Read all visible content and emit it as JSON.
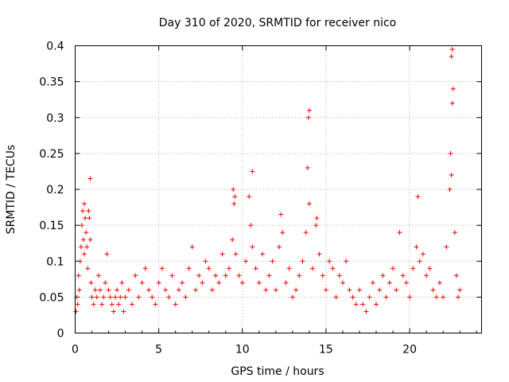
{
  "chart_data": {
    "type": "scatter",
    "title": "Day 310 of 2020, SRMTID for receiver nico",
    "xlabel": "GPS time / hours",
    "ylabel": "SRMTID / TECUs",
    "xlim": [
      0,
      24.3
    ],
    "ylim": [
      0,
      0.4
    ],
    "xticks": [
      0,
      5,
      10,
      15,
      20
    ],
    "xtick_labels": [
      "0",
      "5",
      "10",
      "15",
      "20"
    ],
    "yticks": [
      0,
      0.05,
      0.1,
      0.15,
      0.2,
      0.25,
      0.3,
      0.35,
      0.4
    ],
    "ytick_labels": [
      "0",
      "0.05",
      "0.1",
      "0.15",
      "0.2",
      "0.25",
      "0.3",
      "0.35",
      "0.4"
    ],
    "grid": true,
    "marker": "+",
    "color": "#ff0000",
    "series": [
      {
        "name": "SRMTID",
        "note": "dense cloud of points; representative values plus visible peaks",
        "x": [
          0.05,
          0.1,
          0.15,
          0.2,
          0.25,
          0.3,
          0.35,
          0.4,
          0.45,
          0.5,
          0.55,
          0.6,
          0.65,
          0.7,
          0.75,
          0.8,
          0.85,
          0.9,
          0.95,
          1.0,
          1.1,
          1.2,
          1.3,
          1.4,
          1.5,
          1.6,
          1.7,
          1.8,
          1.9,
          2.0,
          2.1,
          2.2,
          2.3,
          2.4,
          2.5,
          2.6,
          2.7,
          2.8,
          2.9,
          3.0,
          3.2,
          3.4,
          3.6,
          3.8,
          4.0,
          4.2,
          4.4,
          4.6,
          4.8,
          5.0,
          5.2,
          5.4,
          5.6,
          5.8,
          6.0,
          6.2,
          6.4,
          6.6,
          6.8,
          7.0,
          7.2,
          7.4,
          7.6,
          7.8,
          8.0,
          8.2,
          8.4,
          8.6,
          8.8,
          9.0,
          9.2,
          9.4,
          9.5,
          9.6,
          9.8,
          10.0,
          10.2,
          10.4,
          10.5,
          10.6,
          10.8,
          11.0,
          11.2,
          11.4,
          11.6,
          11.8,
          12.0,
          12.2,
          12.4,
          12.6,
          12.8,
          13.0,
          13.2,
          13.4,
          13.6,
          13.8,
          13.9,
          14.0,
          14.2,
          14.4,
          14.6,
          14.8,
          15.0,
          15.2,
          15.4,
          15.6,
          15.8,
          16.0,
          16.2,
          16.4,
          16.6,
          16.8,
          17.0,
          17.2,
          17.4,
          17.6,
          17.8,
          18.0,
          18.2,
          18.4,
          18.6,
          18.8,
          19.0,
          19.2,
          19.4,
          19.6,
          19.8,
          20.0,
          20.2,
          20.4,
          20.6,
          20.8,
          21.0,
          21.2,
          21.4,
          21.6,
          21.8,
          22.0,
          22.2,
          22.4,
          22.45,
          22.5,
          22.55,
          22.6,
          22.7,
          22.8,
          22.9,
          23.0,
          0.9,
          13.95,
          14.0,
          22.5,
          22.55,
          10.6,
          9.45,
          9.55,
          0.55,
          14.45,
          20.5,
          12.3
        ],
        "y": [
          0.03,
          0.05,
          0.04,
          0.08,
          0.06,
          0.1,
          0.12,
          0.15,
          0.17,
          0.13,
          0.11,
          0.16,
          0.14,
          0.12,
          0.09,
          0.17,
          0.16,
          0.13,
          0.07,
          0.05,
          0.04,
          0.06,
          0.05,
          0.08,
          0.06,
          0.04,
          0.05,
          0.07,
          0.11,
          0.06,
          0.05,
          0.04,
          0.03,
          0.05,
          0.06,
          0.04,
          0.05,
          0.07,
          0.03,
          0.05,
          0.06,
          0.04,
          0.08,
          0.05,
          0.07,
          0.09,
          0.06,
          0.05,
          0.04,
          0.07,
          0.09,
          0.06,
          0.05,
          0.08,
          0.04,
          0.06,
          0.07,
          0.05,
          0.09,
          0.12,
          0.06,
          0.08,
          0.07,
          0.1,
          0.09,
          0.06,
          0.08,
          0.07,
          0.11,
          0.08,
          0.09,
          0.13,
          0.18,
          0.11,
          0.08,
          0.07,
          0.1,
          0.19,
          0.15,
          0.12,
          0.09,
          0.07,
          0.11,
          0.06,
          0.08,
          0.1,
          0.06,
          0.12,
          0.14,
          0.07,
          0.09,
          0.05,
          0.06,
          0.08,
          0.1,
          0.14,
          0.23,
          0.18,
          0.09,
          0.15,
          0.11,
          0.08,
          0.06,
          0.1,
          0.09,
          0.05,
          0.08,
          0.07,
          0.1,
          0.06,
          0.05,
          0.04,
          0.06,
          0.04,
          0.03,
          0.05,
          0.07,
          0.04,
          0.06,
          0.08,
          0.05,
          0.07,
          0.09,
          0.06,
          0.14,
          0.08,
          0.07,
          0.05,
          0.09,
          0.12,
          0.1,
          0.11,
          0.08,
          0.09,
          0.06,
          0.05,
          0.07,
          0.05,
          0.12,
          0.2,
          0.25,
          0.22,
          0.32,
          0.34,
          0.14,
          0.08,
          0.05,
          0.06,
          0.215,
          0.3,
          0.31,
          0.385,
          0.395,
          0.225,
          0.2,
          0.19,
          0.18,
          0.16,
          0.19,
          0.165
        ]
      }
    ]
  }
}
